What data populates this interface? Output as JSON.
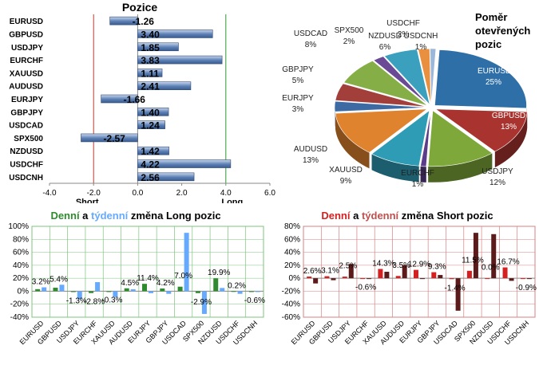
{
  "colors": {
    "bar_blue": "#5b7fb5",
    "grid_green": "#2e9b2e",
    "line_red": "#c0392b",
    "daily_green": "#2e8b2e",
    "weekly_blue": "#66aaff",
    "daily_red": "#d42020",
    "weekly_brown": "#5c1a1a"
  },
  "chart_data": [
    {
      "type": "bar",
      "orientation": "horizontal",
      "title": "Pozice",
      "categories": [
        "EURUSD",
        "GBPUSD",
        "USDJPY",
        "EURCHF",
        "XAUUSD",
        "AUDUSD",
        "EURJPY",
        "GBPJPY",
        "USDCAD",
        "SPX500",
        "NZDUSD",
        "USDCHF",
        "USDCNH"
      ],
      "values": [
        -1.26,
        3.4,
        1.85,
        3.83,
        1.11,
        2.41,
        -1.66,
        1.4,
        1.24,
        -2.57,
        1.42,
        4.22,
        2.56
      ],
      "value_labels": [
        "-1.26",
        "3.40",
        "1.85",
        "3.83",
        "1.11",
        "2.41",
        "-1.66",
        "1.40",
        "1.24",
        "-2.57",
        "1.42",
        "4.22",
        "2.56"
      ],
      "xlim": [
        -4.0,
        6.0
      ],
      "xticks": [
        "-4.0",
        "-2.0",
        "0.0",
        "2.0",
        "4.0",
        "6.0"
      ],
      "annotations": {
        "short": "Short",
        "long": "Long"
      }
    },
    {
      "type": "pie",
      "title": "Poměr otevřených pozic",
      "title_lines": [
        "Poměr",
        "otevřených",
        "pozic"
      ],
      "slices": [
        {
          "name": "EURUSD",
          "value": 25,
          "label": "25%",
          "color": "#2e6fa8"
        },
        {
          "name": "GBPUSD",
          "value": 13,
          "label": "13%",
          "color": "#a8332f"
        },
        {
          "name": "USDJPY",
          "value": 12,
          "label": "12%",
          "color": "#7ea83a"
        },
        {
          "name": "EURCHF",
          "value": 1,
          "label": "1%",
          "color": "#5b3c8a"
        },
        {
          "name": "XAUUSD",
          "value": 9,
          "label": "9%",
          "color": "#2f9cb5"
        },
        {
          "name": "AUDUSD",
          "value": 13,
          "label": "13%",
          "color": "#e0832f"
        },
        {
          "name": "EURJPY",
          "value": 3,
          "label": "3%",
          "color": "#3d6aa3"
        },
        {
          "name": "GBPJPY",
          "value": 5,
          "label": "5%",
          "color": "#a33f3b"
        },
        {
          "name": "USDCAD",
          "value": 8,
          "label": "8%",
          "color": "#86ae46"
        },
        {
          "name": "SPX500",
          "value": 2,
          "label": "2%",
          "color": "#6a4a95"
        },
        {
          "name": "NZDUSD",
          "value": 6,
          "label": "6%",
          "color": "#3aa0bd"
        },
        {
          "name": "USDCHF",
          "value": 2,
          "label": "2%",
          "color": "#e89040"
        },
        {
          "name": "USDCNH",
          "value": 1,
          "label": "1%",
          "color": "#9bb7d9"
        }
      ]
    },
    {
      "type": "bar",
      "title_parts": [
        "Denní",
        " a ",
        "týdenní",
        " změna Long pozic"
      ],
      "categories": [
        "EURUSD",
        "GBPUSD",
        "USDJPY",
        "EURCHF",
        "XAUUSD",
        "AUDUSD",
        "EURJPY",
        "GBPJPY",
        "USDCAD",
        "SPX500",
        "NZDUSD",
        "USDCHF",
        "USDCNH"
      ],
      "series": [
        {
          "name": "Denní",
          "values": [
            3.2,
            5.4,
            -1.3,
            -2.8,
            -0.3,
            4.5,
            11.4,
            4.2,
            7.0,
            -2.9,
            19.9,
            0.2,
            -0.6
          ]
        },
        {
          "name": "týdenní",
          "values": [
            6,
            10,
            -12,
            14,
            -9,
            3,
            -3,
            -4,
            90,
            -35,
            5,
            -4,
            -1
          ]
        }
      ],
      "value_labels": [
        "3.2%",
        "5.4%",
        "-1.3%",
        "-2.8%",
        "-0.3%",
        "4.5%",
        "11.4%",
        "4.2%",
        "7.0%",
        "-2.9%",
        "19.9%",
        "0.2%",
        "-0.6%"
      ],
      "ylim": [
        -40,
        100
      ],
      "yticks": [
        "100%",
        "80%",
        "60%",
        "40%",
        "20%",
        "0%",
        "-20%",
        "-40%"
      ]
    },
    {
      "type": "bar",
      "title_parts": [
        "Denní",
        " a ",
        "týdenní",
        " změna Short pozic"
      ],
      "categories": [
        "EURUSD",
        "GBPUSD",
        "USDJPY",
        "EURCHF",
        "XAUUSD",
        "AUDUSD",
        "EURJPY",
        "GBPJPY",
        "USDCAD",
        "SPX500",
        "NZDUSD",
        "USDCHF",
        "USDCNH"
      ],
      "series": [
        {
          "name": "Denní",
          "values": [
            2.6,
            3.1,
            2.5,
            -0.6,
            14.3,
            3.5,
            12.9,
            9.3,
            -1.4,
            11.5,
            0.0,
            16.7,
            -0.9
          ]
        },
        {
          "name": "týdenní",
          "values": [
            -8,
            -3,
            22,
            -1,
            10,
            20,
            0,
            5,
            -50,
            70,
            68,
            -4,
            -1
          ]
        }
      ],
      "value_labels": [
        "2.6%",
        "3.1%",
        "2.5%",
        "-0.6%",
        "14.3%",
        "3.5%",
        "12.9%",
        "9.3%",
        "-1.4%",
        "11.5%",
        "0.0%",
        "16.7%",
        "-0.9%"
      ],
      "ylim": [
        -60,
        80
      ],
      "yticks": [
        "80%",
        "60%",
        "40%",
        "20%",
        "0%",
        "-20%",
        "-40%",
        "-60%"
      ]
    }
  ]
}
